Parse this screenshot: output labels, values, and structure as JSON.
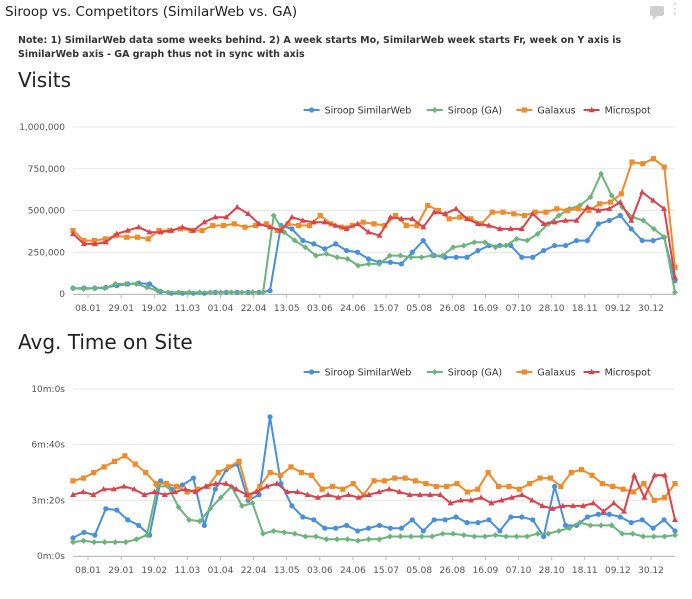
{
  "header": {
    "title": "Siroop vs. Competitors (SimilarWeb vs. GA)",
    "note": "Note: 1) SimilarWeb data some weeks behind. 2) A week starts Mo, SimilarWeb week starts Fr, week on Y axis is SimilarWeb axis - GA graph thus not in sync with axis",
    "icons": [
      "comment-icon",
      "more-icon"
    ]
  },
  "colors": {
    "siroop_sw": "#4a90d9",
    "siroop_ga": "#6db37c",
    "galaxus": "#ee8c2c",
    "microspot": "#d8434e"
  },
  "chart_data": [
    {
      "type": "line",
      "title": "Visits",
      "x_tick_labels": [
        "08.01",
        "29.01",
        "19.02",
        "11.03",
        "01.04",
        "22.04",
        "13.05",
        "03.06",
        "24.06",
        "15.07",
        "05.08",
        "26.08",
        "16.09",
        "07.10",
        "28.10",
        "18.11",
        "09.12",
        "30.12"
      ],
      "y_ticks": [
        0,
        250000,
        500000,
        750000,
        1000000
      ],
      "y_tick_labels": [
        "0",
        "250,000",
        "500,000",
        "750,000",
        "1,000,000"
      ],
      "ylim": [
        0,
        1000000
      ],
      "legend_position": "top-right",
      "grid": true,
      "series": [
        {
          "name": "Siroop SimilarWeb",
          "color": "#4a90d9",
          "marker": "circle",
          "values": [
            35000,
            35000,
            35000,
            40000,
            50000,
            60000,
            65000,
            60000,
            15000,
            5000,
            5000,
            5000,
            5000,
            10000,
            10000,
            10000,
            10000,
            10000,
            20000,
            410000,
            390000,
            320000,
            300000,
            270000,
            300000,
            260000,
            250000,
            210000,
            190000,
            190000,
            180000,
            250000,
            320000,
            230000,
            220000,
            220000,
            220000,
            260000,
            290000,
            290000,
            290000,
            220000,
            220000,
            260000,
            290000,
            290000,
            320000,
            320000,
            420000,
            440000,
            470000,
            390000,
            320000,
            320000,
            340000,
            80000
          ]
        },
        {
          "name": "Siroop (GA)",
          "color": "#6db37c",
          "marker": "diamond",
          "values": [
            35000,
            30000,
            35000,
            35000,
            60000,
            60000,
            60000,
            40000,
            20000,
            10000,
            10000,
            10000,
            10000,
            10000,
            10000,
            10000,
            10000,
            10000,
            10000,
            470000,
            370000,
            320000,
            280000,
            230000,
            240000,
            220000,
            210000,
            170000,
            180000,
            180000,
            230000,
            230000,
            220000,
            220000,
            230000,
            230000,
            280000,
            290000,
            310000,
            310000,
            280000,
            290000,
            330000,
            320000,
            360000,
            420000,
            470000,
            510000,
            530000,
            580000,
            720000,
            590000,
            520000,
            460000,
            440000,
            390000,
            340000,
            10000
          ]
        },
        {
          "name": "Galaxus",
          "color": "#ee8c2c",
          "marker": "square",
          "values": [
            380000,
            320000,
            320000,
            330000,
            350000,
            340000,
            340000,
            330000,
            380000,
            380000,
            390000,
            380000,
            380000,
            410000,
            410000,
            420000,
            400000,
            410000,
            420000,
            380000,
            420000,
            410000,
            410000,
            470000,
            420000,
            400000,
            410000,
            430000,
            420000,
            410000,
            470000,
            410000,
            410000,
            530000,
            500000,
            450000,
            460000,
            450000,
            420000,
            490000,
            490000,
            480000,
            470000,
            490000,
            490000,
            510000,
            500000,
            510000,
            500000,
            540000,
            550000,
            600000,
            790000,
            780000,
            810000,
            760000,
            160000
          ]
        },
        {
          "name": "Microspot",
          "color": "#d8434e",
          "marker": "triangle",
          "values": [
            360000,
            300000,
            300000,
            310000,
            360000,
            380000,
            400000,
            370000,
            370000,
            380000,
            400000,
            380000,
            430000,
            460000,
            460000,
            520000,
            480000,
            420000,
            400000,
            380000,
            460000,
            440000,
            430000,
            430000,
            410000,
            390000,
            420000,
            370000,
            350000,
            460000,
            450000,
            450000,
            400000,
            490000,
            480000,
            510000,
            450000,
            420000,
            410000,
            390000,
            390000,
            390000,
            480000,
            420000,
            430000,
            440000,
            440000,
            520000,
            500000,
            510000,
            550000,
            440000,
            610000,
            560000,
            510000,
            100000
          ]
        }
      ]
    },
    {
      "type": "line",
      "title": "Avg. Time on Site",
      "x_tick_labels": [
        "08.01",
        "29.01",
        "19.02",
        "11.03",
        "01.04",
        "22.04",
        "13.05",
        "03.06",
        "24.06",
        "15.07",
        "05.08",
        "26.08",
        "16.09",
        "07.10",
        "28.10",
        "18.11",
        "09.12",
        "30.12"
      ],
      "y_ticks": [
        0,
        200,
        400,
        600
      ],
      "y_tick_labels": [
        "0m:0s",
        "3m:20s",
        "6m:40s",
        "10m:0s"
      ],
      "ylabel_unit": "seconds",
      "ylim": [
        0,
        600
      ],
      "legend_position": "top-right",
      "grid": true,
      "series": [
        {
          "name": "Siroop SimilarWeb",
          "color": "#4a90d9",
          "marker": "circle",
          "values": [
            65,
            85,
            75,
            170,
            165,
            130,
            110,
            75,
            270,
            240,
            255,
            280,
            110,
            240,
            310,
            330,
            200,
            220,
            500,
            260,
            180,
            140,
            130,
            100,
            100,
            110,
            90,
            100,
            110,
            100,
            100,
            130,
            90,
            130,
            130,
            140,
            120,
            120,
            130,
            90,
            140,
            140,
            130,
            70,
            250,
            110,
            110,
            140,
            150,
            150,
            140,
            120,
            130,
            100,
            130,
            90
          ]
        },
        {
          "name": "Siroop (GA)",
          "color": "#6db37c",
          "marker": "diamond",
          "values": [
            50,
            55,
            50,
            50,
            50,
            50,
            60,
            75,
            250,
            250,
            175,
            130,
            125,
            170,
            210,
            250,
            180,
            190,
            80,
            90,
            85,
            80,
            70,
            70,
            60,
            60,
            60,
            55,
            60,
            60,
            70,
            70,
            70,
            70,
            70,
            80,
            80,
            75,
            70,
            70,
            75,
            70,
            70,
            70,
            80,
            80,
            90,
            100,
            120,
            110,
            110,
            110,
            80,
            80,
            70,
            70,
            70,
            75
          ]
        },
        {
          "name": "Galaxus",
          "color": "#ee8c2c",
          "marker": "square",
          "values": [
            270,
            280,
            300,
            320,
            340,
            360,
            330,
            300,
            260,
            260,
            250,
            230,
            240,
            250,
            300,
            320,
            340,
            210,
            250,
            300,
            290,
            320,
            300,
            290,
            240,
            250,
            240,
            260,
            220,
            270,
            270,
            280,
            280,
            270,
            260,
            250,
            250,
            260,
            230,
            240,
            300,
            250,
            250,
            240,
            260,
            280,
            280,
            250,
            300,
            310,
            290,
            260,
            250,
            240,
            230,
            260,
            200,
            210,
            260
          ]
        },
        {
          "name": "Microspot",
          "color": "#d8434e",
          "marker": "triangle",
          "values": [
            220,
            230,
            220,
            240,
            240,
            250,
            240,
            220,
            230,
            220,
            230,
            240,
            230,
            250,
            260,
            260,
            240,
            220,
            230,
            250,
            260,
            230,
            230,
            220,
            210,
            220,
            210,
            220,
            210,
            220,
            230,
            240,
            230,
            220,
            220,
            220,
            220,
            190,
            200,
            200,
            210,
            190,
            200,
            210,
            220,
            200,
            180,
            170,
            180,
            180,
            180,
            190,
            160,
            190,
            160,
            290,
            210,
            290,
            290,
            130
          ]
        }
      ]
    }
  ]
}
